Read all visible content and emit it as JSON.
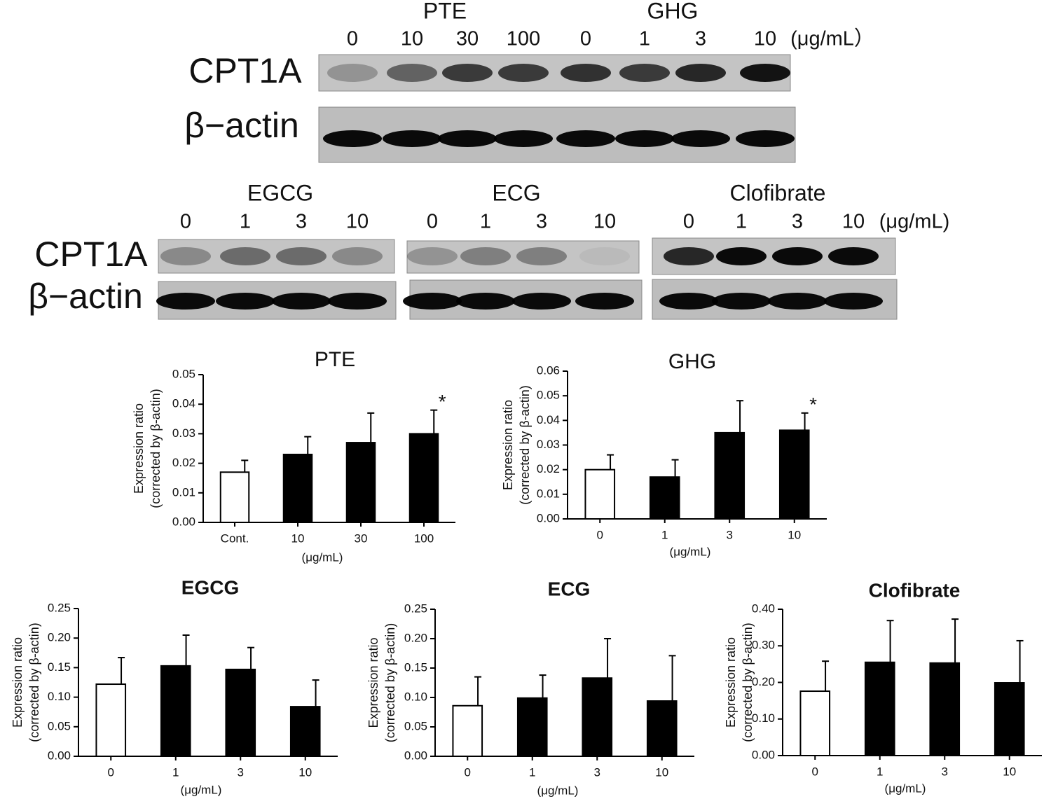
{
  "blots": [
    {
      "groups": [
        {
          "name": "PTE",
          "doses": [
            "0",
            "10",
            "30",
            "100"
          ]
        },
        {
          "name": "GHG",
          "doses": [
            "0",
            "1",
            "3",
            "10"
          ]
        }
      ],
      "unit": "(μg/mL）",
      "rows": [
        "CPT1A",
        "β−actin"
      ]
    },
    {
      "groups": [
        {
          "name": "EGCG",
          "doses": [
            "0",
            "1",
            "3",
            "10"
          ]
        },
        {
          "name": "ECG",
          "doses": [
            "0",
            "1",
            "3",
            "10"
          ]
        },
        {
          "name": "Clofibrate",
          "doses": [
            "0",
            "1",
            "3",
            "10"
          ]
        }
      ],
      "unit": "(μg/mL)",
      "rows": [
        "CPT1A",
        "β−actin"
      ]
    }
  ],
  "chart_data": [
    {
      "type": "bar",
      "title": "PTE",
      "ylabel": [
        "Expression ratio",
        "(corrected by β-actin)"
      ],
      "xlabel": "(μg/mL)",
      "categories": [
        "Cont.",
        "10",
        "30",
        "100"
      ],
      "values": [
        0.017,
        0.023,
        0.027,
        0.03
      ],
      "errors": [
        0.004,
        0.006,
        0.01,
        0.008
      ],
      "colors": [
        "#ffffff",
        "#000000",
        "#000000",
        "#000000"
      ],
      "significance": [
        null,
        null,
        null,
        "*"
      ],
      "ylim": [
        0,
        0.05
      ],
      "yticks": [
        {
          "value": 0,
          "label": "0.00"
        },
        0.01,
        0.02,
        0.03,
        0.04,
        0.05
      ]
    },
    {
      "type": "bar",
      "title": "GHG",
      "ylabel": [
        "Expression ratio",
        "(corrected by β-actin)"
      ],
      "xlabel": "(μg/mL)",
      "categories": [
        "0",
        "1",
        "3",
        "10"
      ],
      "values": [
        0.02,
        0.017,
        0.035,
        0.036
      ],
      "errors": [
        0.006,
        0.007,
        0.013,
        0.007
      ],
      "colors": [
        "#ffffff",
        "#000000",
        "#000000",
        "#000000"
      ],
      "significance": [
        null,
        null,
        null,
        "*"
      ],
      "ylim": [
        0,
        0.06
      ],
      "yticks": [
        {
          "value": 0,
          "label": "0.00"
        },
        0.01,
        0.02,
        0.03,
        0.04,
        0.05,
        0.06
      ]
    },
    {
      "type": "bar",
      "title": "EGCG",
      "ylabel": [
        "Expression ratio",
        "(corrected by β-actin)"
      ],
      "xlabel": "(μg/mL)",
      "categories": [
        "0",
        "1",
        "3",
        "10"
      ],
      "values": [
        0.122,
        0.153,
        0.147,
        0.084
      ],
      "errors": [
        0.045,
        0.052,
        0.037,
        0.045
      ],
      "colors": [
        "#ffffff",
        "#000000",
        "#000000",
        "#000000"
      ],
      "ylim": [
        0,
        0.25
      ],
      "yticks": [
        {
          "value": 0,
          "label": "0.00"
        },
        0.05,
        {
          "value": 0.1,
          "label": "0.10"
        },
        0.15,
        {
          "value": 0.2,
          "label": "0.20"
        },
        0.25
      ]
    },
    {
      "type": "bar",
      "title": "ECG",
      "ylabel": [
        "Expression ratio",
        "(corrected by β-actin)"
      ],
      "xlabel": "(μg/mL)",
      "categories": [
        "0",
        "1",
        "3",
        "10"
      ],
      "values": [
        0.086,
        0.099,
        0.133,
        0.094
      ],
      "errors": [
        0.049,
        0.039,
        0.067,
        0.077
      ],
      "colors": [
        "#ffffff",
        "#000000",
        "#000000",
        "#000000"
      ],
      "ylim": [
        0,
        0.25
      ],
      "yticks": [
        {
          "value": 0,
          "label": "0.00"
        },
        0.05,
        {
          "value": 0.1,
          "label": "0.10"
        },
        0.15,
        {
          "value": 0.2,
          "label": "0.20"
        },
        0.25
      ]
    },
    {
      "type": "bar",
      "title": "Clofibrate",
      "ylabel": [
        "Expression ratio",
        "(corrected by β-actin)"
      ],
      "xlabel": "(μg/mL)",
      "categories": [
        "0",
        "1",
        "3",
        "10"
      ],
      "values": [
        0.176,
        0.255,
        0.253,
        0.199
      ],
      "errors": [
        0.082,
        0.114,
        0.12,
        0.115
      ],
      "colors": [
        "#ffffff",
        "#000000",
        "#000000",
        "#000000"
      ],
      "ylim": [
        0,
        0.4
      ],
      "yticks": [
        {
          "value": 0,
          "label": "0.00"
        },
        {
          "value": 0.1,
          "label": "0.10"
        },
        {
          "value": 0.2,
          "label": "0.20"
        },
        {
          "value": 0.3,
          "label": "0.30"
        },
        {
          "value": 0.4,
          "label": "0.40"
        }
      ]
    }
  ]
}
